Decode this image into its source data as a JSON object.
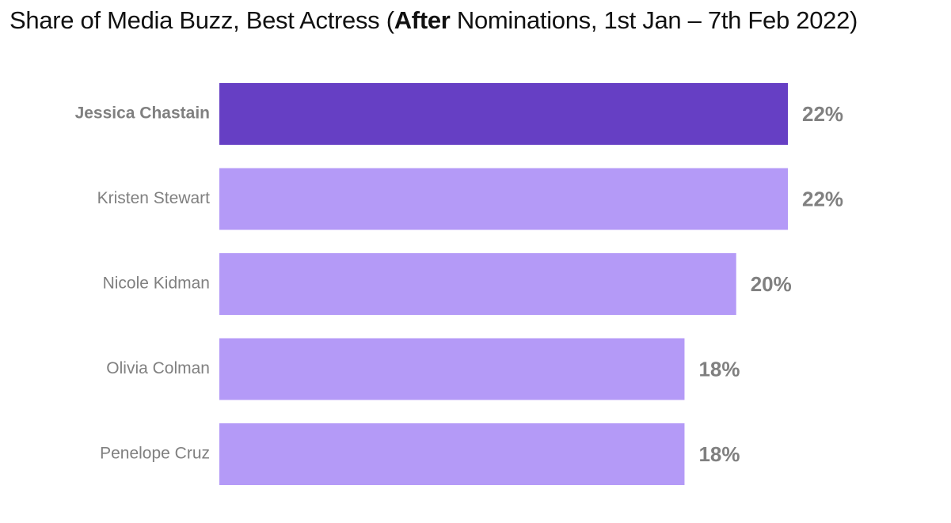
{
  "title": {
    "main": "Share of Media Buzz, Best Actress (",
    "emphasis": "After",
    "rest": " Nominations, 1st Jan – 7th Feb 2022)"
  },
  "colors": {
    "highlight_bar": "#663fc4",
    "bar": "#b49af7",
    "label_text": "#808080",
    "title_text": "#111111"
  },
  "chart_data": {
    "type": "bar",
    "orientation": "horizontal",
    "categories": [
      "Jessica Chastain",
      "Kristen Stewart",
      "Nicole Kidman",
      "Olivia Colman",
      "Penelope Cruz"
    ],
    "values": [
      22,
      22,
      20,
      18,
      18
    ],
    "value_labels": [
      "22%",
      "22%",
      "20%",
      "18%",
      "18%"
    ],
    "highlighted": "Jessica Chastain",
    "xlim": [
      0,
      22
    ],
    "grid": false,
    "legend": "none"
  }
}
